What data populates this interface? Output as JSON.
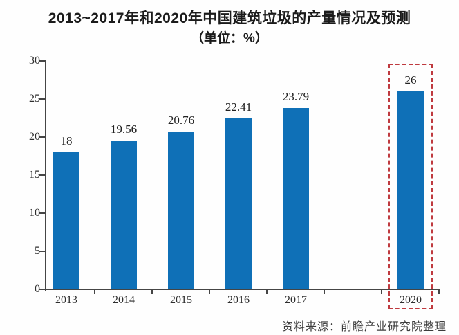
{
  "chart_data": {
    "type": "bar",
    "title": "2013~2017年和2020年中国建筑垃圾的产量情况及预测",
    "subtitle": "（单位：%）",
    "categories": [
      "2013",
      "2014",
      "2015",
      "2016",
      "2017",
      "2020"
    ],
    "values": [
      18,
      19.56,
      20.76,
      22.41,
      23.79,
      26
    ],
    "value_labels": [
      "18",
      "19.56",
      "20.76",
      "22.41",
      "23.79",
      "26"
    ],
    "slot_indices": [
      0,
      1,
      2,
      3,
      4,
      6
    ],
    "total_slots": 7,
    "y_ticks": [
      0,
      5,
      10,
      15,
      20,
      25,
      30
    ],
    "ylim": [
      0,
      30
    ],
    "xlabel": "",
    "ylabel": "",
    "grid": false,
    "legend": "none",
    "bar_color": "#0f70b7",
    "axis_color": "#454545",
    "highlight": {
      "category": "2020",
      "style": "dashed-box",
      "color": "#bf3a3f"
    },
    "source": "资料来源：前瞻产业研究院整理"
  }
}
